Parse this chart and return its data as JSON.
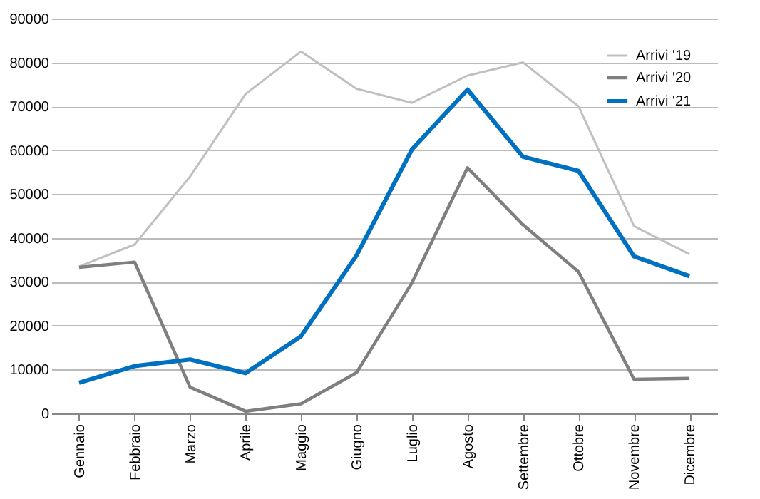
{
  "chart_data": {
    "type": "line",
    "categories": [
      "Gennaio",
      "Febbraio",
      "Marzo",
      "Aprile",
      "Maggio",
      "Giugno",
      "Luglio",
      "Agosto",
      "Settembre",
      "Ottobre",
      "Novembre",
      "Dicembre"
    ],
    "series": [
      {
        "name": "Arrivi '19",
        "color": "#c0c0c0",
        "values": [
          33500,
          38500,
          54000,
          72800,
          82500,
          74000,
          70800,
          77000,
          80000,
          70000,
          42700,
          36300
        ]
      },
      {
        "name": "Arrivi '20",
        "color": "#7f7f7f",
        "values": [
          33300,
          34500,
          6000,
          500,
          2200,
          9300,
          29800,
          56000,
          43000,
          32300,
          7800,
          8000
        ]
      },
      {
        "name": "Arrivi '21",
        "color": "#0070c0",
        "values": [
          7000,
          10800,
          12300,
          9200,
          17600,
          36000,
          60200,
          73800,
          58500,
          55300,
          35800,
          31300
        ]
      }
    ],
    "ylim": [
      0,
      90000
    ],
    "yticks": [
      0,
      10000,
      20000,
      30000,
      40000,
      50000,
      60000,
      70000,
      80000,
      90000
    ],
    "grid": "y",
    "legend": "top right",
    "marker": "none",
    "line_style": "solid"
  }
}
